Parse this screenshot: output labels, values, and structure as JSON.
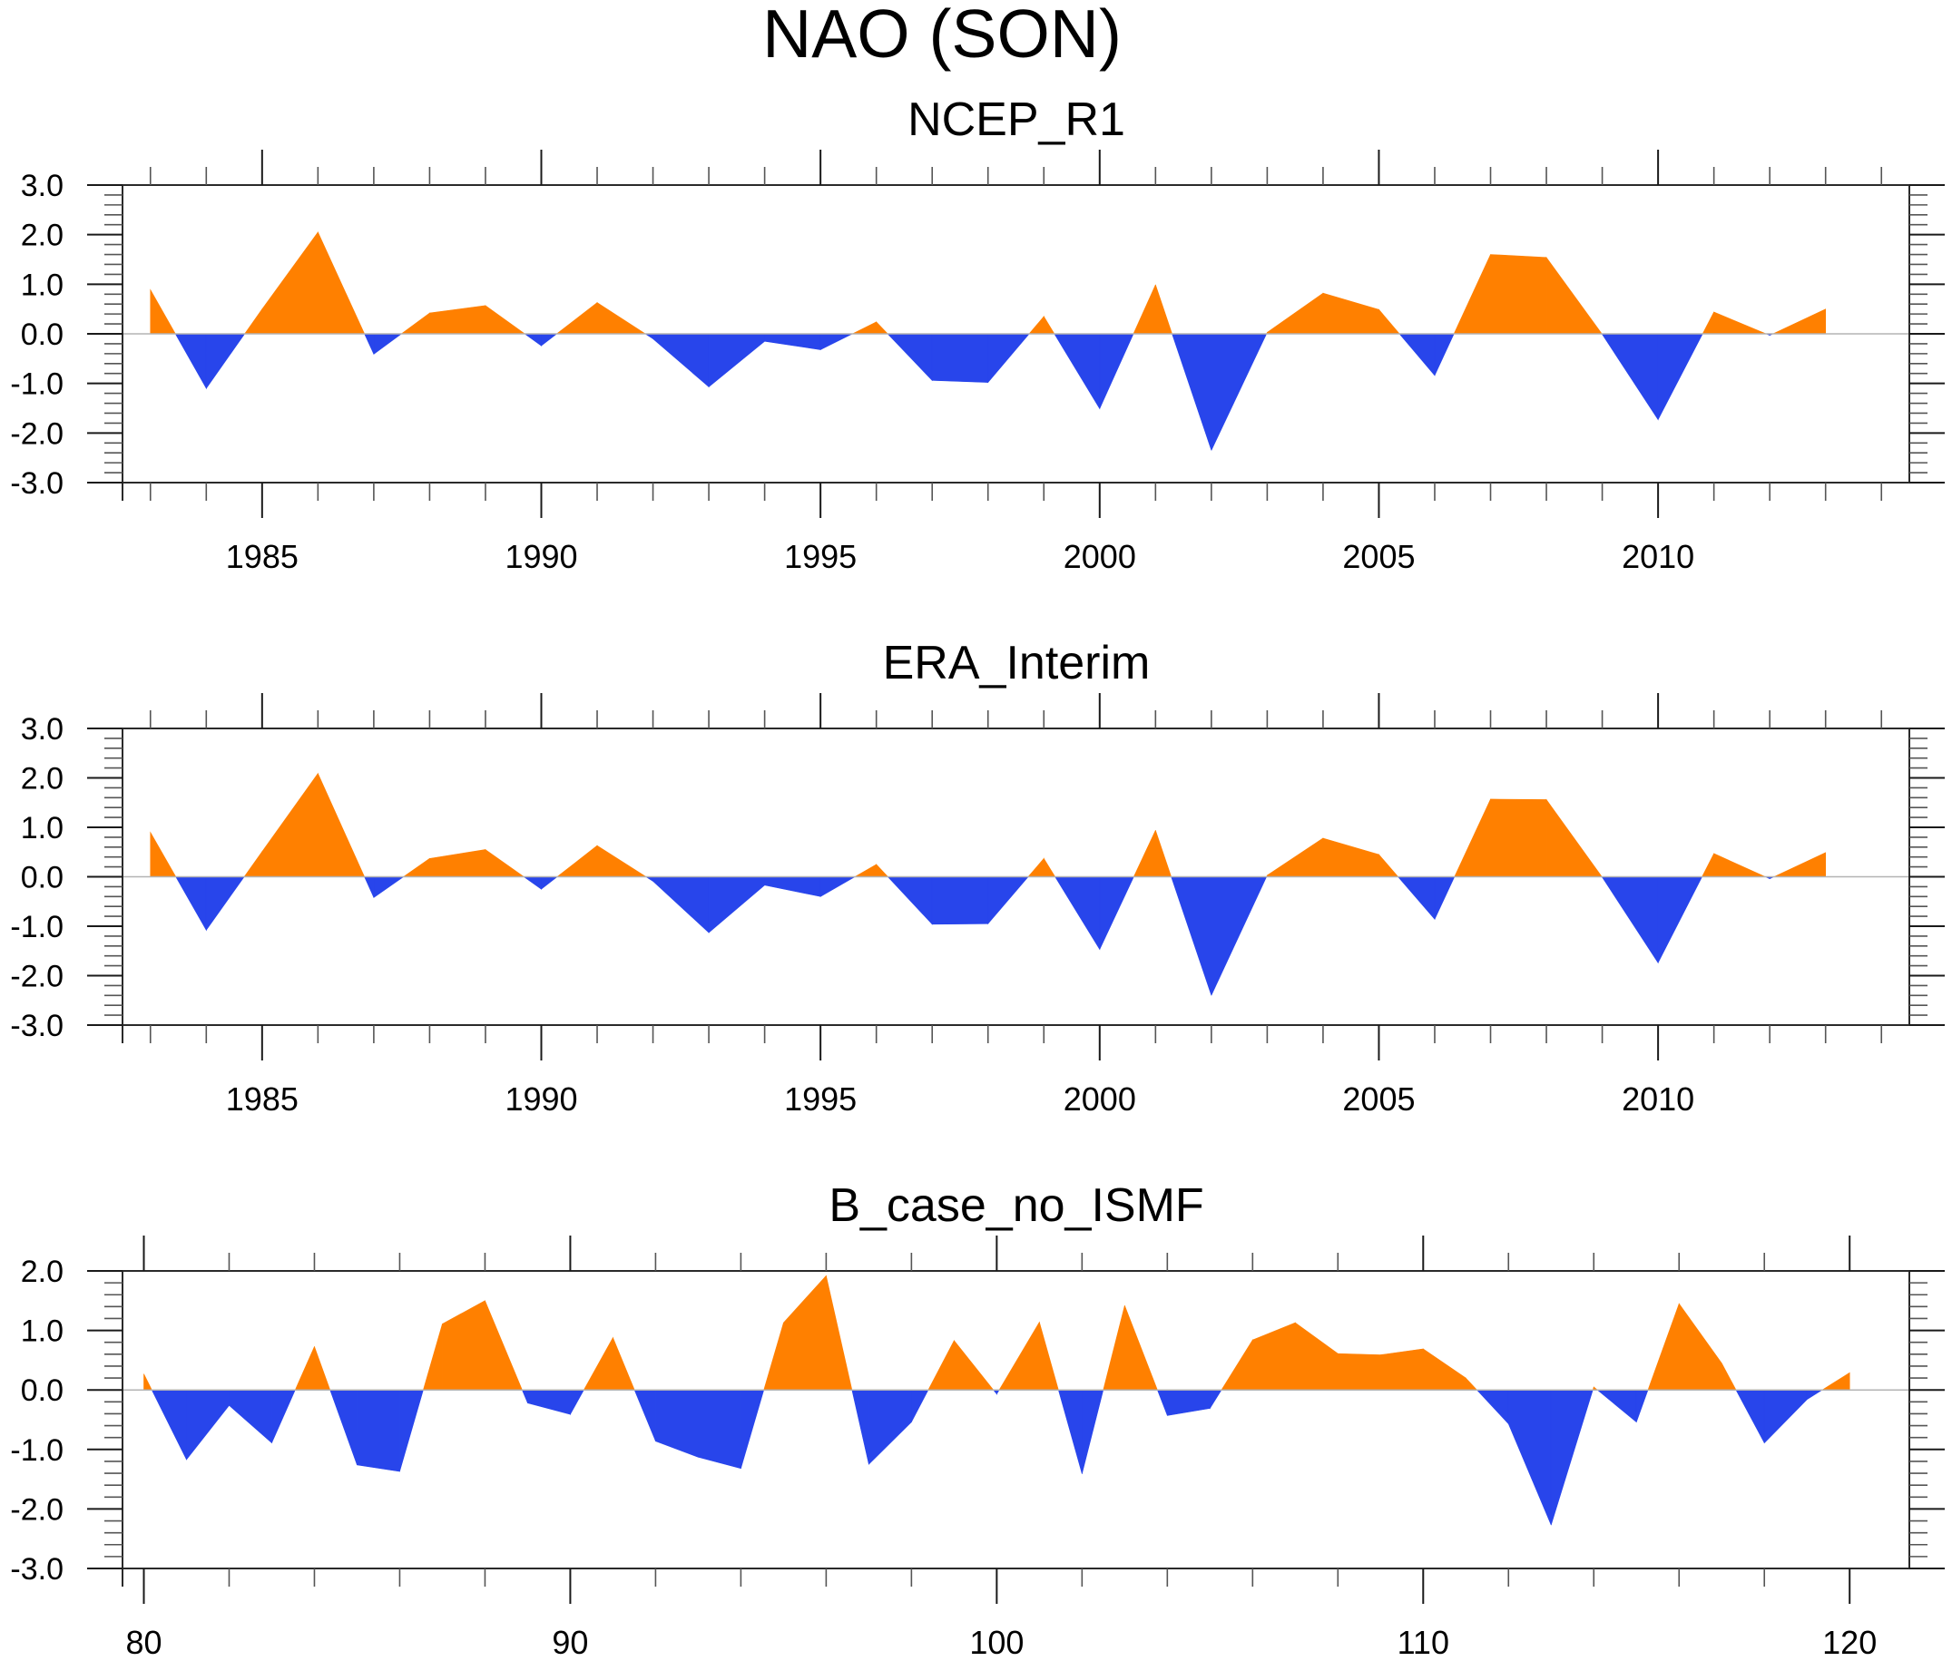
{
  "chart_data": {
    "title": "NAO (SON)",
    "panels": [
      {
        "type": "area",
        "title": "NCEP_R1",
        "xlabel": "",
        "ylabel": "",
        "x": [
          1983,
          1984,
          1985,
          1986,
          1987,
          1988,
          1989,
          1990,
          1991,
          1992,
          1993,
          1994,
          1995,
          1996,
          1997,
          1998,
          1999,
          2000,
          2001,
          2002,
          2003,
          2004,
          2005,
          2006,
          2007,
          2008,
          2009,
          2010,
          2011,
          2012,
          2013
        ],
        "values": [
          0.89,
          -1.1,
          0.5,
          2.05,
          -0.41,
          0.42,
          0.57,
          -0.24,
          0.63,
          -0.1,
          -1.07,
          -0.15,
          -0.32,
          0.24,
          -0.94,
          -0.98,
          0.35,
          -1.51,
          0.99,
          -2.35,
          0.03,
          0.82,
          0.49,
          -0.84,
          1.6,
          1.54,
          -0.01,
          -1.73,
          0.44,
          -0.03,
          0.5
        ],
        "xlim": [
          1982.5,
          2014.5
        ],
        "ylim": [
          -3.0,
          3.0
        ],
        "x_major_ticks": [
          1985,
          1990,
          1995,
          2000,
          2005,
          2010
        ],
        "x_tick_labels": [
          "1985",
          "1990",
          "1995",
          "2000",
          "2005",
          "2010"
        ],
        "x_minor_step": 1,
        "y_major_ticks": [
          -3.0,
          -2.0,
          -1.0,
          0.0,
          1.0,
          2.0,
          3.0
        ],
        "y_tick_labels": [
          "-3.0",
          "-2.0",
          "-1.0",
          "0.0",
          "1.0",
          "2.0",
          "3.0"
        ],
        "y_minor_step": 0.2,
        "positive_color": "#ff8000",
        "negative_color": "#2845eb",
        "reference_line": 0.0,
        "grid": false
      },
      {
        "type": "area",
        "title": "ERA_Interim",
        "xlabel": "",
        "ylabel": "",
        "x": [
          1983,
          1984,
          1985,
          1986,
          1987,
          1988,
          1989,
          1990,
          1991,
          1992,
          1993,
          1994,
          1995,
          1996,
          1997,
          1998,
          1999,
          2000,
          2001,
          2002,
          2003,
          2004,
          2005,
          2006,
          2007,
          2008,
          2009,
          2010,
          2011,
          2012,
          2013
        ],
        "values": [
          0.9,
          -1.08,
          0.51,
          2.09,
          -0.42,
          0.37,
          0.55,
          -0.25,
          0.63,
          -0.09,
          -1.13,
          -0.17,
          -0.4,
          0.25,
          -0.96,
          -0.95,
          0.37,
          -1.47,
          0.94,
          -2.4,
          0.03,
          0.78,
          0.45,
          -0.86,
          1.57,
          1.56,
          -0.01,
          -1.74,
          0.47,
          -0.04,
          0.49
        ],
        "xlim": [
          1982.5,
          2014.5
        ],
        "ylim": [
          -3.0,
          3.0
        ],
        "x_major_ticks": [
          1985,
          1990,
          1995,
          2000,
          2005,
          2010
        ],
        "x_tick_labels": [
          "1985",
          "1990",
          "1995",
          "2000",
          "2005",
          "2010"
        ],
        "x_minor_step": 1,
        "y_major_ticks": [
          -3.0,
          -2.0,
          -1.0,
          0.0,
          1.0,
          2.0,
          3.0
        ],
        "y_tick_labels": [
          "-3.0",
          "-2.0",
          "-1.0",
          "0.0",
          "1.0",
          "2.0",
          "3.0"
        ],
        "y_minor_step": 0.2,
        "positive_color": "#ff8000",
        "negative_color": "#2845eb",
        "reference_line": 0.0,
        "grid": false
      },
      {
        "type": "area",
        "title": "B_case_no_ISMF",
        "xlabel": "",
        "ylabel": "",
        "x": [
          80,
          81,
          82,
          83,
          84,
          85,
          86,
          87,
          88,
          89,
          90,
          91,
          92,
          93,
          94,
          95,
          96,
          97,
          98,
          99,
          100,
          101,
          102,
          103,
          104,
          105,
          106,
          107,
          108,
          109,
          110,
          111,
          112,
          113,
          114,
          115,
          116,
          117,
          118,
          119,
          120
        ],
        "values": [
          0.27,
          -1.17,
          -0.26,
          -0.89,
          0.73,
          -1.26,
          -1.37,
          1.11,
          1.5,
          -0.22,
          -0.41,
          0.88,
          -0.86,
          -1.13,
          -1.32,
          1.13,
          1.92,
          -1.25,
          -0.54,
          0.83,
          -0.07,
          1.14,
          -1.41,
          1.42,
          -0.43,
          -0.31,
          0.84,
          1.13,
          0.61,
          0.59,
          0.69,
          0.2,
          -0.57,
          -2.27,
          0.05,
          -0.54,
          1.45,
          0.45,
          -0.89,
          -0.16,
          0.29
        ],
        "xlim": [
          79.5,
          121.4
        ],
        "ylim": [
          -3.0,
          2.0
        ],
        "x_major_ticks": [
          80,
          90,
          100,
          110,
          120
        ],
        "x_tick_labels": [
          "80",
          "90",
          "100",
          "110",
          "120"
        ],
        "x_minor_step": 2,
        "y_major_ticks": [
          -3.0,
          -2.0,
          -1.0,
          0.0,
          1.0,
          2.0
        ],
        "y_tick_labels": [
          "-3.0",
          "-2.0",
          "-1.0",
          "0.0",
          "1.0",
          "2.0"
        ],
        "y_minor_step": 0.2,
        "positive_color": "#ff8000",
        "negative_color": "#2845eb",
        "reference_line": 0.0,
        "grid": false
      }
    ]
  }
}
